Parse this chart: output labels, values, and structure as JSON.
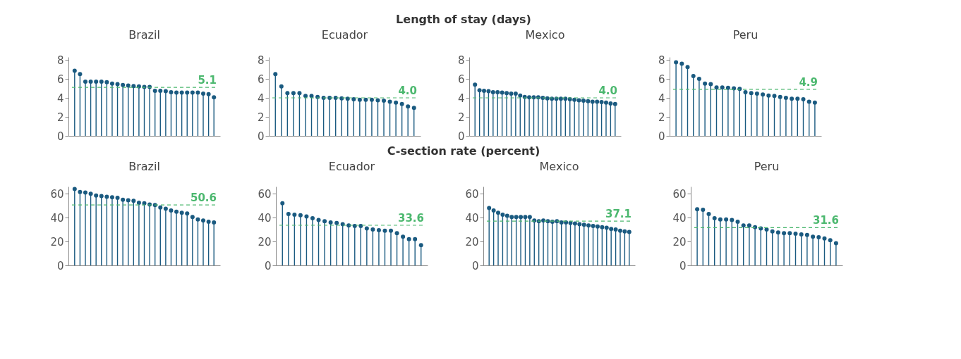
{
  "chart_data": [
    {
      "type": "lollipop",
      "annotations": [
        "Length of stay (days)"
      ],
      "title": "Brazil",
      "categories": [
        null,
        null,
        null,
        null,
        null,
        null,
        null,
        null,
        null,
        null,
        null,
        null,
        null,
        null,
        null,
        null,
        null,
        null,
        null,
        null,
        null,
        null,
        null,
        null,
        null,
        null,
        null
      ],
      "series": [
        {
          "color": "#1a5a80",
          "values": [
            6.85,
            6.5,
            5.7,
            5.7,
            5.7,
            5.7,
            5.65,
            5.5,
            5.45,
            5.35,
            5.3,
            5.25,
            5.2,
            5.15,
            5.15,
            4.75,
            4.75,
            4.7,
            4.6,
            4.55,
            4.55,
            4.55,
            4.55,
            4.55,
            4.45,
            4.4,
            4.05
          ]
        }
      ],
      "ylim": [
        0,
        8.3
      ],
      "yticks": [
        0,
        2,
        4,
        6,
        8
      ],
      "tick_labels": "y",
      "marker": "circle",
      "ref_lines": [
        {
          "axis": "y",
          "value": 5.1,
          "label": "5.1",
          "color": "#4cb86f",
          "line_style": "dashed"
        }
      ]
    },
    {
      "type": "lollipop",
      "title": "Ecuador",
      "categories": [
        null,
        null,
        null,
        null,
        null,
        null,
        null,
        null,
        null,
        null,
        null,
        null,
        null,
        null,
        null,
        null,
        null,
        null,
        null,
        null,
        null,
        null,
        null,
        null
      ],
      "series": [
        {
          "color": "#1a5a80",
          "values": [
            6.5,
            5.2,
            4.5,
            4.5,
            4.5,
            4.2,
            4.2,
            4.1,
            4.0,
            4.0,
            4.0,
            3.95,
            3.9,
            3.85,
            3.8,
            3.8,
            3.8,
            3.75,
            3.7,
            3.6,
            3.5,
            3.35,
            3.1,
            2.95
          ]
        }
      ],
      "ylim": [
        0,
        8.3
      ],
      "yticks": [
        0,
        2,
        4,
        6,
        8
      ],
      "tick_labels": "y",
      "marker": "circle",
      "ref_lines": [
        {
          "axis": "y",
          "value": 4.0,
          "label": "4.0",
          "color": "#4cb86f",
          "line_style": "dashed"
        }
      ]
    },
    {
      "type": "lollipop",
      "title": "Mexico",
      "categories": [
        null,
        null,
        null,
        null,
        null,
        null,
        null,
        null,
        null,
        null,
        null,
        null,
        null,
        null,
        null,
        null,
        null,
        null,
        null,
        null,
        null,
        null,
        null,
        null,
        null,
        null,
        null,
        null,
        null,
        null,
        null,
        null
      ],
      "series": [
        {
          "color": "#1a5a80",
          "values": [
            5.4,
            4.8,
            4.75,
            4.7,
            4.6,
            4.6,
            4.55,
            4.5,
            4.45,
            4.45,
            4.25,
            4.1,
            4.05,
            4.05,
            4.05,
            4.0,
            3.95,
            3.9,
            3.9,
            3.9,
            3.9,
            3.85,
            3.8,
            3.75,
            3.7,
            3.65,
            3.6,
            3.6,
            3.55,
            3.5,
            3.4,
            3.35
          ]
        }
      ],
      "ylim": [
        0,
        8.3
      ],
      "yticks": [
        0,
        2,
        4,
        6,
        8
      ],
      "tick_labels": "y",
      "marker": "circle",
      "ref_lines": [
        {
          "axis": "y",
          "value": 4.0,
          "label": "4.0",
          "color": "#4cb86f",
          "line_style": "dashed"
        }
      ]
    },
    {
      "type": "lollipop",
      "title": "Peru",
      "categories": [
        null,
        null,
        null,
        null,
        null,
        null,
        null,
        null,
        null,
        null,
        null,
        null,
        null,
        null,
        null,
        null,
        null,
        null,
        null,
        null,
        null,
        null,
        null,
        null,
        null
      ],
      "series": [
        {
          "color": "#1a5a80",
          "values": [
            7.75,
            7.6,
            7.25,
            6.3,
            6.0,
            5.5,
            5.45,
            5.1,
            5.1,
            5.05,
            5.0,
            4.95,
            4.6,
            4.5,
            4.45,
            4.35,
            4.25,
            4.2,
            4.1,
            4.0,
            3.9,
            3.9,
            3.85,
            3.6,
            3.5
          ]
        }
      ],
      "ylim": [
        0,
        8.3
      ],
      "yticks": [
        0,
        2,
        4,
        6,
        8
      ],
      "tick_labels": "y",
      "marker": "circle",
      "ref_lines": [
        {
          "axis": "y",
          "value": 4.9,
          "label": "4.9",
          "color": "#4cb86f",
          "line_style": "dashed"
        }
      ]
    },
    {
      "type": "lollipop",
      "annotations": [
        "C-section rate (percent)"
      ],
      "title": "Brazil",
      "categories": [
        null,
        null,
        null,
        null,
        null,
        null,
        null,
        null,
        null,
        null,
        null,
        null,
        null,
        null,
        null,
        null,
        null,
        null,
        null,
        null,
        null,
        null,
        null,
        null,
        null,
        null,
        null
      ],
      "series": [
        {
          "color": "#1a5a80",
          "values": [
            64,
            61.5,
            61,
            60,
            58.5,
            58,
            57.5,
            57,
            56.5,
            55,
            54.5,
            54,
            52.5,
            52,
            51,
            50.5,
            48.5,
            47.5,
            46,
            45,
            44,
            43.5,
            40.5,
            38.5,
            37.5,
            36.5,
            36
          ]
        }
      ],
      "ylim": [
        0,
        66
      ],
      "yticks": [
        0,
        20,
        40,
        60
      ],
      "tick_labels": "y",
      "marker": "circle",
      "ref_lines": [
        {
          "axis": "y",
          "value": 50.6,
          "label": "50.6",
          "color": "#4cb86f",
          "line_style": "dashed"
        }
      ]
    },
    {
      "type": "lollipop",
      "title": "Ecuador",
      "categories": [
        null,
        null,
        null,
        null,
        null,
        null,
        null,
        null,
        null,
        null,
        null,
        null,
        null,
        null,
        null,
        null,
        null,
        null,
        null,
        null,
        null,
        null,
        null,
        null
      ],
      "series": [
        {
          "color": "#1a5a80",
          "values": [
            52,
            43,
            42.5,
            42,
            41,
            39.5,
            38,
            37,
            36,
            35.5,
            34.5,
            33.5,
            33,
            33,
            31,
            30,
            29.5,
            29,
            29,
            27,
            24,
            22,
            22,
            17
          ]
        }
      ],
      "ylim": [
        0,
        66
      ],
      "yticks": [
        0,
        20,
        40,
        60
      ],
      "tick_labels": "y",
      "marker": "circle",
      "ref_lines": [
        {
          "axis": "y",
          "value": 33.6,
          "label": "33.6",
          "color": "#4cb86f",
          "line_style": "dashed"
        }
      ]
    },
    {
      "type": "lollipop",
      "title": "Mexico",
      "categories": [
        null,
        null,
        null,
        null,
        null,
        null,
        null,
        null,
        null,
        null,
        null,
        null,
        null,
        null,
        null,
        null,
        null,
        null,
        null,
        null,
        null,
        null,
        null,
        null,
        null,
        null,
        null,
        null,
        null,
        null,
        null,
        null
      ],
      "series": [
        {
          "color": "#1a5a80",
          "values": [
            48,
            46,
            44,
            42.5,
            41.5,
            40.5,
            40.5,
            40.5,
            40.5,
            40.5,
            37.5,
            37,
            37.5,
            37,
            36.5,
            37,
            36,
            36,
            35.5,
            35,
            34.5,
            34,
            33.5,
            33,
            32.5,
            32,
            31.5,
            30.5,
            30,
            29,
            28.5,
            28
          ]
        }
      ],
      "ylim": [
        0,
        66
      ],
      "yticks": [
        0,
        20,
        40,
        60
      ],
      "tick_labels": "y",
      "marker": "circle",
      "ref_lines": [
        {
          "axis": "y",
          "value": 37.1,
          "label": "37.1",
          "color": "#4cb86f",
          "line_style": "dashed"
        }
      ]
    },
    {
      "type": "lollipop",
      "title": "Peru",
      "categories": [
        null,
        null,
        null,
        null,
        null,
        null,
        null,
        null,
        null,
        null,
        null,
        null,
        null,
        null,
        null,
        null,
        null,
        null,
        null,
        null,
        null,
        null,
        null,
        null,
        null
      ],
      "series": [
        {
          "color": "#1a5a80",
          "values": [
            47,
            46.5,
            43,
            39.5,
            38.5,
            38.5,
            38,
            36.5,
            33.5,
            33.5,
            32,
            31,
            30,
            28.5,
            27.5,
            27,
            27,
            26.5,
            26,
            25.5,
            24,
            23.5,
            22.5,
            21,
            18.5
          ]
        }
      ],
      "ylim": [
        0,
        66
      ],
      "yticks": [
        0,
        20,
        40,
        60
      ],
      "tick_labels": "y",
      "marker": "circle",
      "ref_lines": [
        {
          "axis": "y",
          "value": 31.6,
          "label": "31.6",
          "color": "#4cb86f",
          "line_style": "dashed"
        }
      ]
    }
  ]
}
